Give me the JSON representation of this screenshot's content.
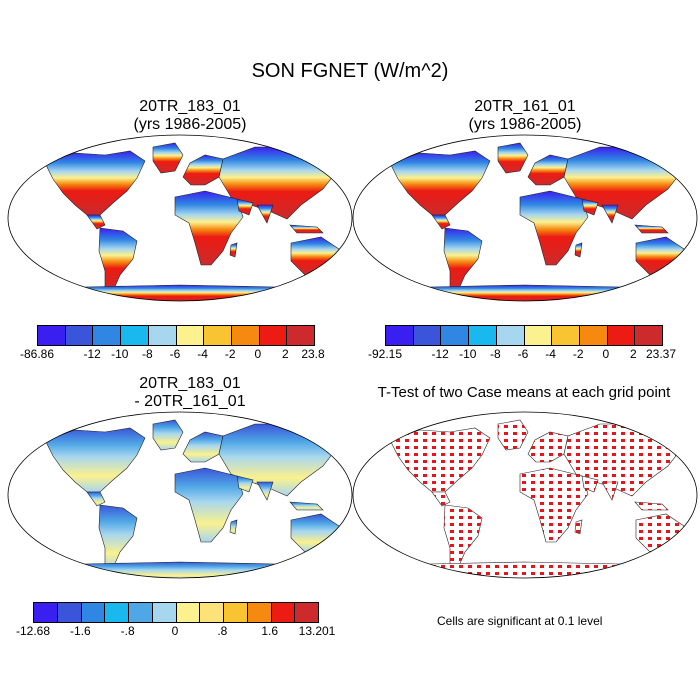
{
  "figure_title": "SON FGNET (W/m^2)",
  "panels": {
    "p1": {
      "title_line1": "20TR_183_01",
      "title_line2": "(yrs 1986-2005)"
    },
    "p2": {
      "title_line1": "20TR_161_01",
      "title_line2": "(yrs 1986-2005)"
    },
    "p3": {
      "title_line1": "20TR_183_01",
      "title_line2": "- 20TR_161_01"
    },
    "p4": {
      "title_line1": "T-Test of two Case means at each grid point"
    }
  },
  "colorbars": {
    "cb1": {
      "colors": [
        "#3b1ff0",
        "#3a55d9",
        "#2f86e3",
        "#19b8ee",
        "#a7d6ef",
        "#fbf18e",
        "#f9c431",
        "#f68910",
        "#ec1b13",
        "#cc2a2d"
      ],
      "ticks": [
        "-86.86",
        "-12",
        "-10",
        "-8",
        "-6",
        "-4",
        "-2",
        "0",
        "2",
        "23.8"
      ],
      "tick_slots": [
        0,
        2,
        3,
        4,
        5,
        6,
        7,
        8,
        9,
        10
      ]
    },
    "cb2": {
      "colors": [
        "#3b1ff0",
        "#3a55d9",
        "#2f86e3",
        "#19b8ee",
        "#a7d6ef",
        "#fbf18e",
        "#f9c431",
        "#f68910",
        "#ec1b13",
        "#cc2a2d"
      ],
      "ticks": [
        "-92.15",
        "-12",
        "-10",
        "-8",
        "-6",
        "-4",
        "-2",
        "0",
        "2",
        "23.37"
      ],
      "tick_slots": [
        0,
        2,
        3,
        4,
        5,
        6,
        7,
        8,
        9,
        10
      ]
    },
    "cb3": {
      "colors": [
        "#3b1ff0",
        "#3a55d9",
        "#2f86e3",
        "#19b8ee",
        "#4fa7e6",
        "#a7d6ef",
        "#fbf18e",
        "#fde17a",
        "#f9c431",
        "#f68910",
        "#ec1b13",
        "#cc2a2d"
      ],
      "ticks": [
        "-12.68",
        "-1.6",
        "-.8",
        "0",
        ".8",
        "1.6",
        "13.201"
      ],
      "tick_slots": [
        0,
        2,
        4,
        6,
        8,
        10,
        12
      ]
    }
  },
  "significance_note": "Cells are significant at 0.1 level"
}
